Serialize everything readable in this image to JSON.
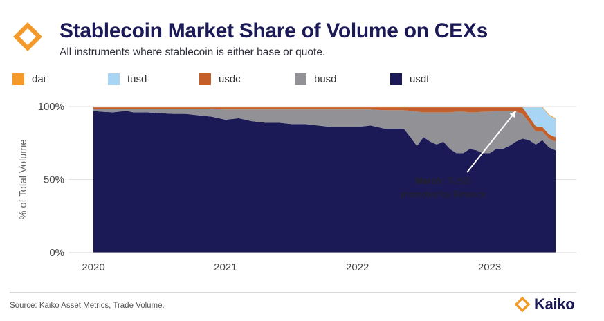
{
  "header": {
    "title": "Stablecoin Market Share of Volume on CEXs",
    "subtitle": "All instruments where stablecoin is either base or quote."
  },
  "footer": {
    "source": "Source: Kaiko Asset Metrics, Trade Volume.",
    "brand": "Kaiko"
  },
  "colors": {
    "brand_orange": "#f39a2b",
    "title_navy": "#1b1a57"
  },
  "chart_data": {
    "type": "area",
    "stacked": true,
    "ylabel": "% of Total Volume",
    "ylim": [
      0,
      100
    ],
    "y_ticks": [
      {
        "value": 0,
        "label": "0%"
      },
      {
        "value": 50,
        "label": "50%"
      },
      {
        "value": 100,
        "label": "100%"
      }
    ],
    "xlim": [
      2020.0,
      2023.5
    ],
    "x_ticks": [
      {
        "value": 2020,
        "label": "2020"
      },
      {
        "value": 2021,
        "label": "2021"
      },
      {
        "value": 2022,
        "label": "2022"
      },
      {
        "value": 2023,
        "label": "2023"
      }
    ],
    "grid": "horizontal",
    "legend_position": "top",
    "x": [
      2020.0,
      2020.05,
      2020.15,
      2020.25,
      2020.3,
      2020.4,
      2020.5,
      2020.6,
      2020.7,
      2020.8,
      2020.9,
      2021.0,
      2021.1,
      2021.2,
      2021.3,
      2021.4,
      2021.5,
      2021.6,
      2021.7,
      2021.8,
      2021.9,
      2022.0,
      2022.1,
      2022.2,
      2022.3,
      2022.35,
      2022.4,
      2022.45,
      2022.5,
      2022.55,
      2022.6,
      2022.65,
      2022.7,
      2022.75,
      2022.8,
      2022.85,
      2022.9,
      2022.95,
      2023.0,
      2023.05,
      2023.1,
      2023.15,
      2023.2,
      2023.25,
      2023.3,
      2023.35,
      2023.4,
      2023.45,
      2023.5
    ],
    "series": [
      {
        "name": "usdt",
        "color": "#1b1a57",
        "values": [
          97,
          96.5,
          96,
          97,
          96,
          96,
          95.5,
          95,
          95,
          94,
          93,
          91,
          92,
          90,
          89,
          89,
          88,
          88,
          87,
          86,
          86,
          86,
          87,
          85,
          85,
          85,
          79,
          73,
          79,
          76,
          74,
          76,
          71,
          68,
          68,
          71,
          70,
          68,
          68,
          71,
          71,
          73,
          76,
          78,
          77,
          74,
          77,
          72,
          70
        ]
      },
      {
        "name": "busd",
        "color": "#919196",
        "values": [
          1.5,
          2,
          2.5,
          1.5,
          2.5,
          2.5,
          3,
          3.5,
          3.5,
          4.5,
          5.5,
          7,
          6,
          8,
          9,
          9,
          10,
          10,
          11,
          12,
          12,
          12,
          11,
          12.5,
          12.5,
          12.5,
          18,
          23.5,
          17,
          20,
          22,
          20,
          25,
          28.5,
          28.5,
          25,
          26,
          28.5,
          28.5,
          26,
          26,
          24,
          20.5,
          17,
          12,
          9,
          6,
          6,
          6
        ]
      },
      {
        "name": "usdc",
        "color": "#c45f2a",
        "values": [
          1,
          1,
          1,
          1,
          1,
          1,
          1,
          1,
          1,
          1,
          1,
          1.5,
          1.5,
          1.5,
          1.5,
          1.5,
          1.5,
          1.5,
          1.5,
          1.5,
          1.5,
          1.5,
          1.5,
          2,
          2,
          2,
          2.5,
          3,
          3.5,
          3.5,
          3.5,
          3.5,
          3.5,
          3,
          3,
          3.5,
          3.5,
          3,
          3,
          2.5,
          2.5,
          2.5,
          3,
          4.5,
          4,
          3.5,
          3,
          3,
          3
        ]
      },
      {
        "name": "tusd",
        "color": "#a9d5f5",
        "values": [
          0,
          0,
          0,
          0,
          0,
          0,
          0,
          0,
          0,
          0,
          0,
          0,
          0,
          0,
          0,
          0,
          0,
          0,
          0,
          0,
          0,
          0,
          0,
          0,
          0,
          0,
          0,
          0,
          0,
          0,
          0,
          0,
          0,
          0,
          0,
          0,
          0,
          0,
          0,
          0,
          0,
          0,
          0,
          0,
          6.5,
          13,
          13.5,
          13,
          12.5
        ]
      },
      {
        "name": "dai",
        "color": "#f39a2b",
        "values": [
          0.5,
          0.5,
          0.5,
          0.5,
          0.5,
          0.5,
          0.5,
          0.5,
          0.5,
          0.5,
          0.5,
          0.5,
          0.5,
          0.5,
          0.5,
          0.5,
          0.5,
          0.5,
          0.5,
          0.5,
          0.5,
          0.5,
          0.5,
          0.5,
          0.5,
          0.5,
          0.5,
          0.5,
          0.5,
          0.5,
          0.5,
          0.5,
          0.5,
          0.5,
          0.5,
          0.5,
          0.5,
          0.5,
          0.5,
          0.5,
          0.5,
          0.5,
          0.5,
          0.5,
          0.5,
          0.5,
          0.5,
          0.5,
          0.5
        ]
      }
    ],
    "legend": [
      {
        "name": "dai",
        "color": "#f39a2b"
      },
      {
        "name": "tusd",
        "color": "#a9d5f5"
      },
      {
        "name": "usdc",
        "color": "#c45f2a"
      },
      {
        "name": "busd",
        "color": "#919196"
      },
      {
        "name": "usdt",
        "color": "#1b1a57"
      }
    ],
    "annotation": {
      "bold": "March:",
      "line1_rest": " TUSD",
      "line2": "promoted by Binance",
      "arrow_to": {
        "x": 2023.2,
        "y": 97
      }
    }
  }
}
